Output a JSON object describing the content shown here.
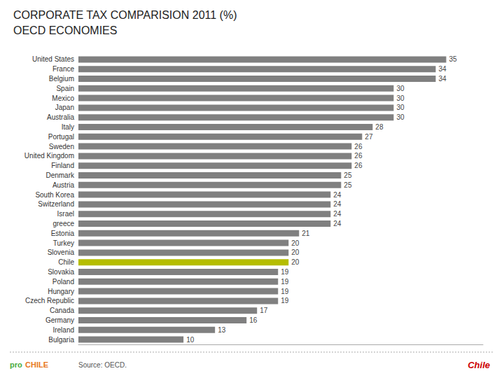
{
  "chart_data": {
    "type": "bar",
    "orientation": "horizontal",
    "title": "CORPORATE TAX COMPARISION 2011 (%)",
    "subtitle": "OECD ECONOMIES",
    "categories": [
      "United States",
      "France",
      "Belgium",
      "Spain",
      "Mexico",
      "Japan",
      "Australia",
      "Italy",
      "Portugal",
      "Sweden",
      "United Kingdom",
      "Finland",
      "Denmark",
      "Austria",
      "South Korea",
      "Switzerland",
      "Israel",
      "greece",
      "Estonia",
      "Turkey",
      "Slovenia",
      "Chile",
      "Slovakia",
      "Poland",
      "Hungary",
      "Czech Republic",
      "Canada",
      "Germany",
      "Ireland",
      "Bulgaria"
    ],
    "values": [
      35,
      34,
      34,
      30,
      30,
      30,
      30,
      28,
      27,
      26,
      26,
      26,
      25,
      25,
      24,
      24,
      24,
      24,
      21,
      20,
      20,
      20,
      19,
      19,
      19,
      19,
      17,
      16,
      13,
      10
    ],
    "colors": [
      "#808080",
      "#808080",
      "#808080",
      "#808080",
      "#808080",
      "#808080",
      "#808080",
      "#808080",
      "#808080",
      "#808080",
      "#808080",
      "#808080",
      "#808080",
      "#808080",
      "#808080",
      "#808080",
      "#808080",
      "#808080",
      "#808080",
      "#808080",
      "#808080",
      "#b5bd00",
      "#808080",
      "#808080",
      "#808080",
      "#808080",
      "#808080",
      "#808080",
      "#808080",
      "#808080"
    ],
    "xlim": [
      0,
      38.5
    ],
    "grid": false,
    "data_labels": true,
    "tick_labels": "y",
    "annotations": [
      {
        "text": "pro",
        "color": "#4aab3f"
      },
      {
        "text": "CHILE",
        "color": "#e87722"
      },
      {
        "text": "Source: OECD.",
        "color": "#555555"
      },
      {
        "text": "Chile",
        "color": "#cc0000"
      }
    ]
  }
}
